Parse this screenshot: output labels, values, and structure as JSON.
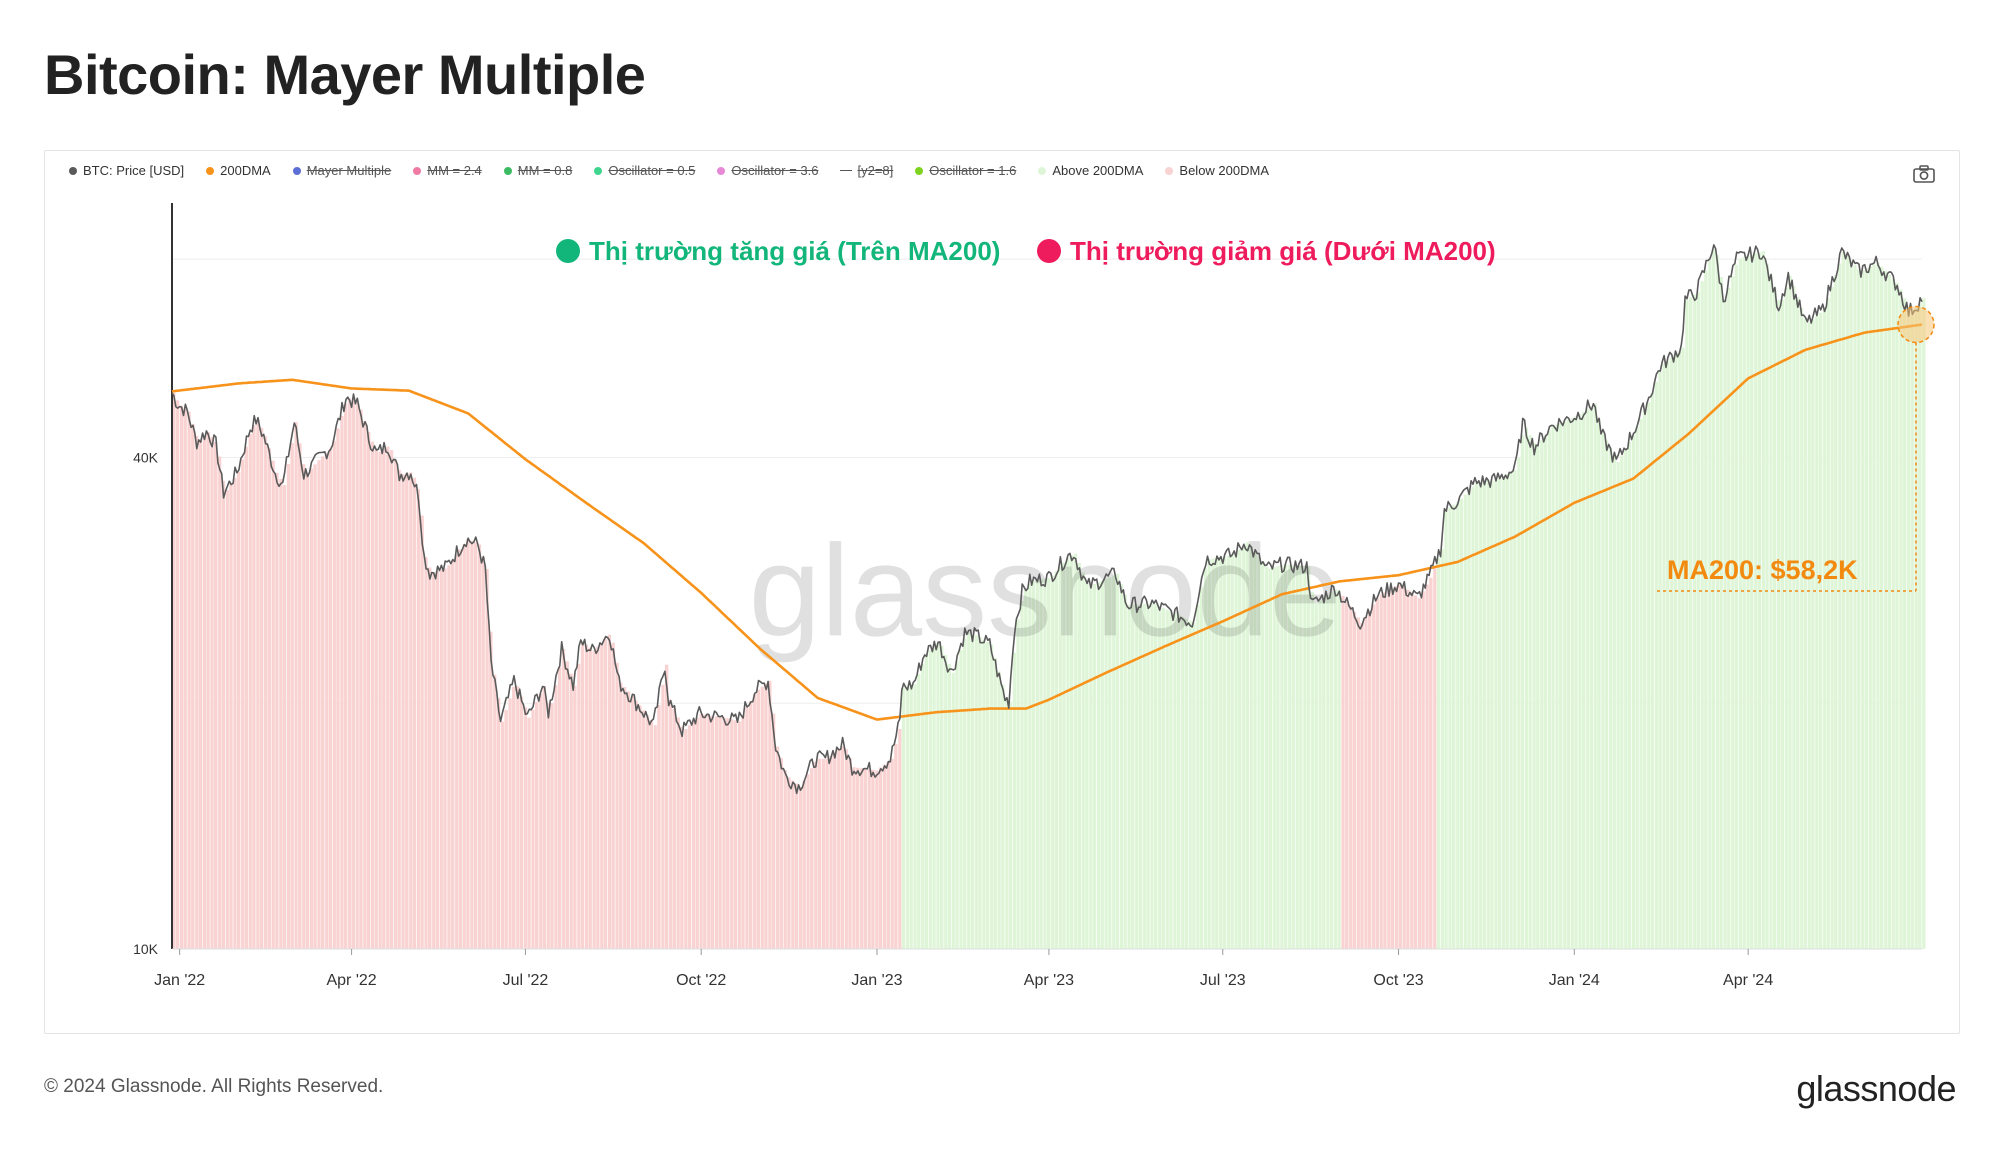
{
  "page": {
    "title": "Bitcoin: Mayer Multiple",
    "copyright": "© 2024 Glassnode. All Rights Reserved.",
    "logo_text": "glassnode",
    "watermark": "glassnode"
  },
  "legend": [
    {
      "label": "BTC: Price [USD]",
      "color": "#5a5a5a",
      "active": true,
      "marker": "dot"
    },
    {
      "label": "200DMA",
      "color": "#f7931a",
      "active": true,
      "marker": "dot"
    },
    {
      "label": "Mayer Multiple",
      "color": "#5b6fd6",
      "active": false,
      "marker": "dot"
    },
    {
      "label": "MM = 2.4",
      "color": "#ef7aa4",
      "active": false,
      "marker": "dot"
    },
    {
      "label": "MM = 0.8",
      "color": "#3dbb63",
      "active": false,
      "marker": "dot"
    },
    {
      "label": "Oscillator = 0.5",
      "color": "#3fd58f",
      "active": false,
      "marker": "dot"
    },
    {
      "label": "Oscillator = 3.6",
      "color": "#e889d6",
      "active": false,
      "marker": "dot"
    },
    {
      "label": "[y2=8]",
      "color": "#555555",
      "active": false,
      "marker": "line"
    },
    {
      "label": "Oscillator = 1.6",
      "color": "#7ed321",
      "active": false,
      "marker": "dot"
    },
    {
      "label": "Above 200DMA",
      "color": "#dff5d8",
      "active": true,
      "marker": "dot"
    },
    {
      "label": "Below 200DMA",
      "color": "#f9d2d2",
      "active": true,
      "marker": "dot"
    }
  ],
  "annotations": {
    "bull_label": "Thị trường tăng giá (Trên MA200)",
    "bull_color": "#13b67a",
    "bear_label": "Thị trường giảm giá (Dưới MA200)",
    "bear_color": "#ee1c5c",
    "ma_label": "MA200: $58,2K",
    "ma_color": "#f28a10"
  },
  "chart_data": {
    "type": "line",
    "title": "Bitcoin: Mayer Multiple",
    "y_scale": "log",
    "ylim": [
      10000,
      82000
    ],
    "y_ticks": [
      {
        "value": 10000,
        "label": "10K"
      },
      {
        "value": 40000,
        "label": "40K"
      }
    ],
    "x_range": [
      "2021-12-28",
      "2024-07-01"
    ],
    "x_ticks": [
      {
        "date": "2022-01-01",
        "label": "Jan '22"
      },
      {
        "date": "2022-04-01",
        "label": "Apr '22"
      },
      {
        "date": "2022-07-01",
        "label": "Jul '22"
      },
      {
        "date": "2022-10-01",
        "label": "Oct '22"
      },
      {
        "date": "2023-01-01",
        "label": "Jan '23"
      },
      {
        "date": "2023-04-01",
        "label": "Apr '23"
      },
      {
        "date": "2023-07-01",
        "label": "Jul '23"
      },
      {
        "date": "2023-10-01",
        "label": "Oct '23"
      },
      {
        "date": "2024-01-01",
        "label": "Jan '24"
      },
      {
        "date": "2024-04-01",
        "label": "Apr '24"
      }
    ],
    "series": [
      {
        "name": "BTC: Price [USD]",
        "color": "#5a5a5a",
        "points": [
          [
            "2021-12-28",
            48000
          ],
          [
            "2021-12-31",
            46500
          ],
          [
            "2022-01-05",
            45500
          ],
          [
            "2022-01-10",
            41800
          ],
          [
            "2022-01-15",
            43000
          ],
          [
            "2022-01-20",
            41500
          ],
          [
            "2022-01-24",
            36200
          ],
          [
            "2022-01-31",
            38400
          ],
          [
            "2022-02-07",
            43500
          ],
          [
            "2022-02-10",
            44500
          ],
          [
            "2022-02-14",
            42500
          ],
          [
            "2022-02-20",
            38300
          ],
          [
            "2022-02-24",
            37000
          ],
          [
            "2022-03-02",
            44200
          ],
          [
            "2022-03-07",
            38100
          ],
          [
            "2022-03-14",
            39700
          ],
          [
            "2022-03-21",
            41200
          ],
          [
            "2022-03-29",
            47400
          ],
          [
            "2022-04-04",
            46500
          ],
          [
            "2022-04-10",
            42300
          ],
          [
            "2022-04-14",
            40500
          ],
          [
            "2022-04-20",
            41400
          ],
          [
            "2022-04-26",
            38100
          ],
          [
            "2022-05-02",
            38400
          ],
          [
            "2022-05-06",
            36000
          ],
          [
            "2022-05-09",
            30200
          ],
          [
            "2022-05-12",
            28900
          ],
          [
            "2022-05-20",
            29300
          ],
          [
            "2022-05-31",
            31800
          ],
          [
            "2022-06-06",
            31300
          ],
          [
            "2022-06-10",
            29200
          ],
          [
            "2022-06-13",
            22400
          ],
          [
            "2022-06-18",
            19000
          ],
          [
            "2022-06-25",
            21300
          ],
          [
            "2022-07-02",
            19200
          ],
          [
            "2022-07-10",
            21000
          ],
          [
            "2022-07-13",
            19500
          ],
          [
            "2022-07-20",
            23300
          ],
          [
            "2022-07-26",
            21000
          ],
          [
            "2022-07-30",
            23800
          ],
          [
            "2022-08-05",
            23200
          ],
          [
            "2022-08-14",
            24400
          ],
          [
            "2022-08-19",
            21200
          ],
          [
            "2022-08-26",
            20300
          ],
          [
            "2022-09-06",
            18800
          ],
          [
            "2022-09-12",
            22300
          ],
          [
            "2022-09-14",
            20200
          ],
          [
            "2022-09-21",
            18500
          ],
          [
            "2022-09-30",
            19400
          ],
          [
            "2022-10-13",
            19200
          ],
          [
            "2022-10-20",
            19000
          ],
          [
            "2022-10-29",
            20700
          ],
          [
            "2022-11-05",
            21300
          ],
          [
            "2022-11-09",
            17700
          ],
          [
            "2022-11-14",
            16300
          ],
          [
            "2022-11-21",
            15800
          ],
          [
            "2022-11-30",
            17100
          ],
          [
            "2022-12-05",
            17100
          ],
          [
            "2022-12-14",
            17800
          ],
          [
            "2022-12-19",
            16700
          ],
          [
            "2022-12-31",
            16550
          ],
          [
            "2023-01-08",
            17100
          ],
          [
            "2023-01-13",
            19000
          ],
          [
            "2023-01-14",
            20900
          ],
          [
            "2023-01-20",
            21100
          ],
          [
            "2023-01-26",
            23000
          ],
          [
            "2023-02-02",
            23800
          ],
          [
            "2023-02-09",
            21800
          ],
          [
            "2023-02-16",
            24400
          ],
          [
            "2023-02-22",
            24200
          ],
          [
            "2023-03-01",
            23600
          ],
          [
            "2023-03-09",
            20300
          ],
          [
            "2023-03-11",
            20100
          ],
          [
            "2023-03-14",
            24700
          ],
          [
            "2023-03-18",
            27400
          ],
          [
            "2023-03-22",
            28200
          ],
          [
            "2023-04-01",
            28500
          ],
          [
            "2023-04-11",
            30300
          ],
          [
            "2023-04-14",
            30500
          ],
          [
            "2023-04-21",
            27800
          ],
          [
            "2023-05-06",
            28800
          ],
          [
            "2023-05-12",
            26400
          ],
          [
            "2023-05-25",
            26500
          ],
          [
            "2023-06-05",
            25800
          ],
          [
            "2023-06-15",
            25100
          ],
          [
            "2023-06-22",
            30000
          ],
          [
            "2023-07-06",
            30400
          ],
          [
            "2023-07-13",
            31500
          ],
          [
            "2023-07-24",
            29200
          ],
          [
            "2023-08-01",
            29600
          ],
          [
            "2023-08-14",
            29400
          ],
          [
            "2023-08-17",
            26400
          ],
          [
            "2023-08-29",
            27700
          ],
          [
            "2023-09-11",
            25100
          ],
          [
            "2023-09-20",
            27100
          ],
          [
            "2023-10-01",
            27980
          ],
          [
            "2023-10-11",
            26900
          ],
          [
            "2023-10-17",
            28500
          ],
          [
            "2023-10-23",
            30900
          ],
          [
            "2023-10-25",
            34500
          ],
          [
            "2023-11-01",
            35400
          ],
          [
            "2023-11-10",
            37300
          ],
          [
            "2023-11-20",
            37500
          ],
          [
            "2023-12-01",
            38700
          ],
          [
            "2023-12-05",
            44000
          ],
          [
            "2023-12-11",
            41200
          ],
          [
            "2023-12-20",
            43700
          ],
          [
            "2024-01-02",
            45000
          ],
          [
            "2024-01-11",
            46600
          ],
          [
            "2024-01-15",
            42800
          ],
          [
            "2024-01-23",
            39500
          ],
          [
            "2024-01-31",
            42600
          ],
          [
            "2024-02-09",
            47300
          ],
          [
            "2024-02-15",
            51800
          ],
          [
            "2024-02-26",
            54500
          ],
          [
            "2024-02-28",
            62400
          ],
          [
            "2024-03-05",
            63800
          ],
          [
            "2024-03-14",
            73100
          ],
          [
            "2024-03-19",
            62500
          ],
          [
            "2024-03-26",
            70000
          ],
          [
            "2024-04-08",
            71600
          ],
          [
            "2024-04-17",
            61300
          ],
          [
            "2024-04-22",
            66800
          ],
          [
            "2024-05-01",
            58300
          ],
          [
            "2024-05-10",
            60700
          ],
          [
            "2024-05-20",
            71400
          ],
          [
            "2024-05-29",
            67600
          ],
          [
            "2024-06-07",
            69300
          ],
          [
            "2024-06-18",
            65100
          ],
          [
            "2024-06-24",
            60300
          ],
          [
            "2024-06-28",
            61400
          ],
          [
            "2024-07-01",
            62700
          ]
        ]
      },
      {
        "name": "200DMA",
        "color": "#f7931a",
        "points": [
          [
            "2021-12-28",
            48200
          ],
          [
            "2022-02-01",
            49300
          ],
          [
            "2022-03-01",
            49800
          ],
          [
            "2022-04-01",
            48600
          ],
          [
            "2022-05-01",
            48300
          ],
          [
            "2022-06-01",
            45300
          ],
          [
            "2022-07-01",
            39800
          ],
          [
            "2022-08-01",
            35300
          ],
          [
            "2022-09-01",
            31400
          ],
          [
            "2022-10-01",
            27300
          ],
          [
            "2022-11-01",
            23300
          ],
          [
            "2022-12-01",
            20300
          ],
          [
            "2023-01-01",
            19100
          ],
          [
            "2023-02-01",
            19500
          ],
          [
            "2023-03-01",
            19700
          ],
          [
            "2023-03-20",
            19700
          ],
          [
            "2023-04-01",
            20200
          ],
          [
            "2023-05-01",
            21800
          ],
          [
            "2023-06-01",
            23500
          ],
          [
            "2023-07-01",
            25200
          ],
          [
            "2023-08-01",
            27200
          ],
          [
            "2023-08-31",
            28200
          ],
          [
            "2023-10-01",
            28700
          ],
          [
            "2023-11-01",
            29800
          ],
          [
            "2023-12-01",
            32000
          ],
          [
            "2024-01-01",
            35200
          ],
          [
            "2024-02-01",
            37700
          ],
          [
            "2024-03-01",
            42800
          ],
          [
            "2024-04-01",
            50000
          ],
          [
            "2024-05-01",
            54200
          ],
          [
            "2024-06-01",
            56900
          ],
          [
            "2024-07-01",
            58200
          ]
        ]
      }
    ],
    "regimes": [
      {
        "name": "Below 200DMA",
        "from": "2021-12-28",
        "to": "2023-01-13",
        "color": "#f9d2d2"
      },
      {
        "name": "Above 200DMA",
        "from": "2023-01-13",
        "to": "2023-08-31",
        "color": "#dff5d8"
      },
      {
        "name": "Below 200DMA",
        "from": "2023-08-31",
        "to": "2023-10-21",
        "color": "#f9d2d2"
      },
      {
        "name": "Above 200DMA",
        "from": "2023-10-21",
        "to": "2024-07-01",
        "color": "#dff5d8"
      }
    ],
    "ma_marker": {
      "date": "2024-07-01",
      "value": 58200
    },
    "grid": true,
    "legend_position": "top-left"
  }
}
